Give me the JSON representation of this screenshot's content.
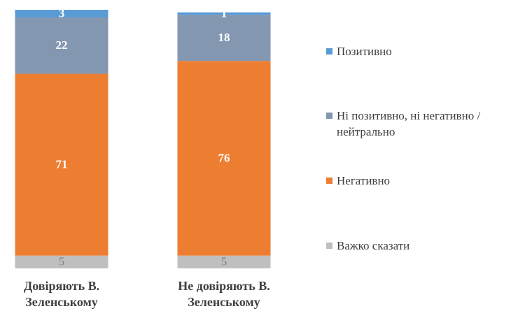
{
  "chart_data": {
    "type": "stacked_bar",
    "categories": [
      "Довіряють В. Зеленському",
      "Не довіряють В. Зеленському"
    ],
    "series": [
      {
        "name": "Важко сказати",
        "color": "#bfbfbf",
        "label_color": "#7f7f7f",
        "values": [
          5,
          5
        ]
      },
      {
        "name": "Негативно",
        "color": "#ed7d31",
        "label_color": "#ffffff",
        "values": [
          71,
          76
        ]
      },
      {
        "name": "Ні позитивно, ні негативно / нейтрально",
        "color": "#8497b0",
        "label_color": "#ffffff",
        "values": [
          22,
          18
        ]
      },
      {
        "name": "Позитивно",
        "color": "#5b9bd5",
        "label_color": "#ffffff",
        "values": [
          3,
          1
        ]
      }
    ],
    "ylim": [
      0,
      101
    ],
    "legend": "right"
  }
}
